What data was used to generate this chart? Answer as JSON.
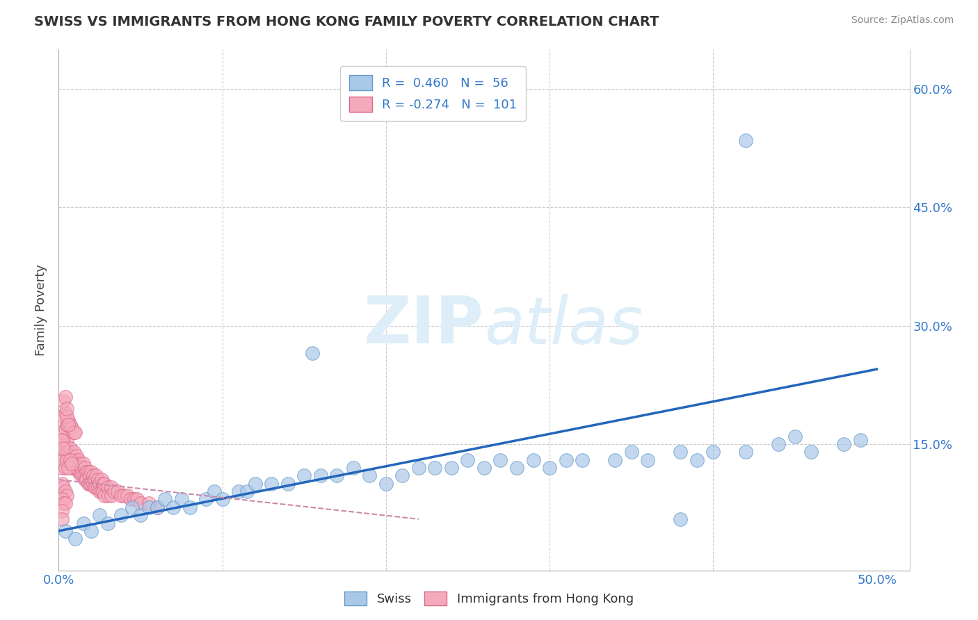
{
  "title": "SWISS VS IMMIGRANTS FROM HONG KONG FAMILY POVERTY CORRELATION CHART",
  "source": "Source: ZipAtlas.com",
  "ylabel": "Family Poverty",
  "xlim": [
    0.0,
    0.52
  ],
  "ylim": [
    -0.01,
    0.65
  ],
  "xtick_positions": [
    0.0,
    0.1,
    0.2,
    0.3,
    0.4,
    0.5
  ],
  "xtick_labels": [
    "0.0%",
    "",
    "",
    "",
    "",
    "50.0%"
  ],
  "ytick_positions": [
    0.0,
    0.15,
    0.3,
    0.45,
    0.6
  ],
  "ytick_labels": [
    "",
    "15.0%",
    "30.0%",
    "45.0%",
    "60.0%"
  ],
  "swiss_R": "0.460",
  "swiss_N": "56",
  "hk_R": "-0.274",
  "hk_N": "101",
  "swiss_color": "#aac8e8",
  "swiss_edge": "#6699cc",
  "hk_color": "#f4aabc",
  "hk_edge": "#dd6688",
  "trend_swiss_color": "#2266bb",
  "trend_hk_color": "#cc88aa",
  "watermark_color": "#ddeef8",
  "legend_swiss": "Swiss",
  "legend_hk": "Immigrants from Hong Kong",
  "swiss_points": [
    [
      0.004,
      0.04
    ],
    [
      0.01,
      0.03
    ],
    [
      0.015,
      0.05
    ],
    [
      0.02,
      0.04
    ],
    [
      0.025,
      0.06
    ],
    [
      0.03,
      0.05
    ],
    [
      0.038,
      0.06
    ],
    [
      0.045,
      0.07
    ],
    [
      0.05,
      0.06
    ],
    [
      0.055,
      0.07
    ],
    [
      0.06,
      0.07
    ],
    [
      0.065,
      0.08
    ],
    [
      0.07,
      0.07
    ],
    [
      0.075,
      0.08
    ],
    [
      0.08,
      0.07
    ],
    [
      0.09,
      0.08
    ],
    [
      0.095,
      0.09
    ],
    [
      0.1,
      0.08
    ],
    [
      0.11,
      0.09
    ],
    [
      0.115,
      0.09
    ],
    [
      0.12,
      0.1
    ],
    [
      0.13,
      0.1
    ],
    [
      0.14,
      0.1
    ],
    [
      0.15,
      0.11
    ],
    [
      0.16,
      0.11
    ],
    [
      0.17,
      0.11
    ],
    [
      0.18,
      0.12
    ],
    [
      0.19,
      0.11
    ],
    [
      0.2,
      0.1
    ],
    [
      0.21,
      0.11
    ],
    [
      0.22,
      0.12
    ],
    [
      0.23,
      0.12
    ],
    [
      0.24,
      0.12
    ],
    [
      0.25,
      0.13
    ],
    [
      0.26,
      0.12
    ],
    [
      0.27,
      0.13
    ],
    [
      0.28,
      0.12
    ],
    [
      0.29,
      0.13
    ],
    [
      0.3,
      0.12
    ],
    [
      0.31,
      0.13
    ],
    [
      0.32,
      0.13
    ],
    [
      0.34,
      0.13
    ],
    [
      0.35,
      0.14
    ],
    [
      0.36,
      0.13
    ],
    [
      0.38,
      0.14
    ],
    [
      0.39,
      0.13
    ],
    [
      0.4,
      0.14
    ],
    [
      0.42,
      0.14
    ],
    [
      0.44,
      0.15
    ],
    [
      0.45,
      0.16
    ],
    [
      0.46,
      0.14
    ],
    [
      0.48,
      0.15
    ],
    [
      0.155,
      0.265
    ],
    [
      0.49,
      0.155
    ],
    [
      0.42,
      0.535
    ],
    [
      0.38,
      0.055
    ]
  ],
  "hk_points": [
    [
      0.002,
      0.145
    ],
    [
      0.003,
      0.155
    ],
    [
      0.004,
      0.14
    ],
    [
      0.004,
      0.13
    ],
    [
      0.005,
      0.155
    ],
    [
      0.005,
      0.145
    ],
    [
      0.006,
      0.14
    ],
    [
      0.006,
      0.13
    ],
    [
      0.007,
      0.145
    ],
    [
      0.007,
      0.135
    ],
    [
      0.008,
      0.13
    ],
    [
      0.008,
      0.12
    ],
    [
      0.009,
      0.14
    ],
    [
      0.009,
      0.125
    ],
    [
      0.01,
      0.13
    ],
    [
      0.01,
      0.12
    ],
    [
      0.011,
      0.135
    ],
    [
      0.011,
      0.12
    ],
    [
      0.012,
      0.13
    ],
    [
      0.012,
      0.115
    ],
    [
      0.013,
      0.125
    ],
    [
      0.013,
      0.115
    ],
    [
      0.014,
      0.12
    ],
    [
      0.014,
      0.11
    ],
    [
      0.015,
      0.125
    ],
    [
      0.015,
      0.11
    ],
    [
      0.016,
      0.12
    ],
    [
      0.016,
      0.105
    ],
    [
      0.017,
      0.115
    ],
    [
      0.017,
      0.105
    ],
    [
      0.018,
      0.115
    ],
    [
      0.018,
      0.1
    ],
    [
      0.019,
      0.11
    ],
    [
      0.019,
      0.1
    ],
    [
      0.02,
      0.115
    ],
    [
      0.02,
      0.1
    ],
    [
      0.021,
      0.11
    ],
    [
      0.021,
      0.1
    ],
    [
      0.022,
      0.105
    ],
    [
      0.022,
      0.095
    ],
    [
      0.023,
      0.11
    ],
    [
      0.023,
      0.095
    ],
    [
      0.024,
      0.105
    ],
    [
      0.024,
      0.095
    ],
    [
      0.025,
      0.1
    ],
    [
      0.025,
      0.09
    ],
    [
      0.026,
      0.105
    ],
    [
      0.026,
      0.09
    ],
    [
      0.027,
      0.1
    ],
    [
      0.027,
      0.09
    ],
    [
      0.028,
      0.1
    ],
    [
      0.028,
      0.085
    ],
    [
      0.03,
      0.095
    ],
    [
      0.03,
      0.085
    ],
    [
      0.032,
      0.095
    ],
    [
      0.032,
      0.085
    ],
    [
      0.034,
      0.09
    ],
    [
      0.036,
      0.09
    ],
    [
      0.038,
      0.085
    ],
    [
      0.04,
      0.085
    ],
    [
      0.042,
      0.085
    ],
    [
      0.044,
      0.08
    ],
    [
      0.046,
      0.08
    ],
    [
      0.048,
      0.08
    ],
    [
      0.05,
      0.075
    ],
    [
      0.055,
      0.075
    ],
    [
      0.06,
      0.07
    ],
    [
      0.003,
      0.165
    ],
    [
      0.004,
      0.17
    ],
    [
      0.005,
      0.175
    ],
    [
      0.006,
      0.18
    ],
    [
      0.007,
      0.175
    ],
    [
      0.008,
      0.17
    ],
    [
      0.009,
      0.165
    ],
    [
      0.01,
      0.165
    ],
    [
      0.002,
      0.12
    ],
    [
      0.003,
      0.13
    ],
    [
      0.004,
      0.12
    ],
    [
      0.005,
      0.13
    ],
    [
      0.006,
      0.12
    ],
    [
      0.007,
      0.13
    ],
    [
      0.008,
      0.125
    ],
    [
      0.002,
      0.155
    ],
    [
      0.003,
      0.145
    ],
    [
      0.002,
      0.1
    ],
    [
      0.003,
      0.095
    ],
    [
      0.004,
      0.09
    ],
    [
      0.005,
      0.085
    ],
    [
      0.002,
      0.08
    ],
    [
      0.003,
      0.075
    ],
    [
      0.004,
      0.075
    ],
    [
      0.003,
      0.185
    ],
    [
      0.004,
      0.19
    ],
    [
      0.005,
      0.185
    ],
    [
      0.006,
      0.175
    ],
    [
      0.003,
      0.205
    ],
    [
      0.004,
      0.21
    ],
    [
      0.005,
      0.195
    ],
    [
      0.002,
      0.065
    ],
    [
      0.002,
      0.055
    ]
  ]
}
